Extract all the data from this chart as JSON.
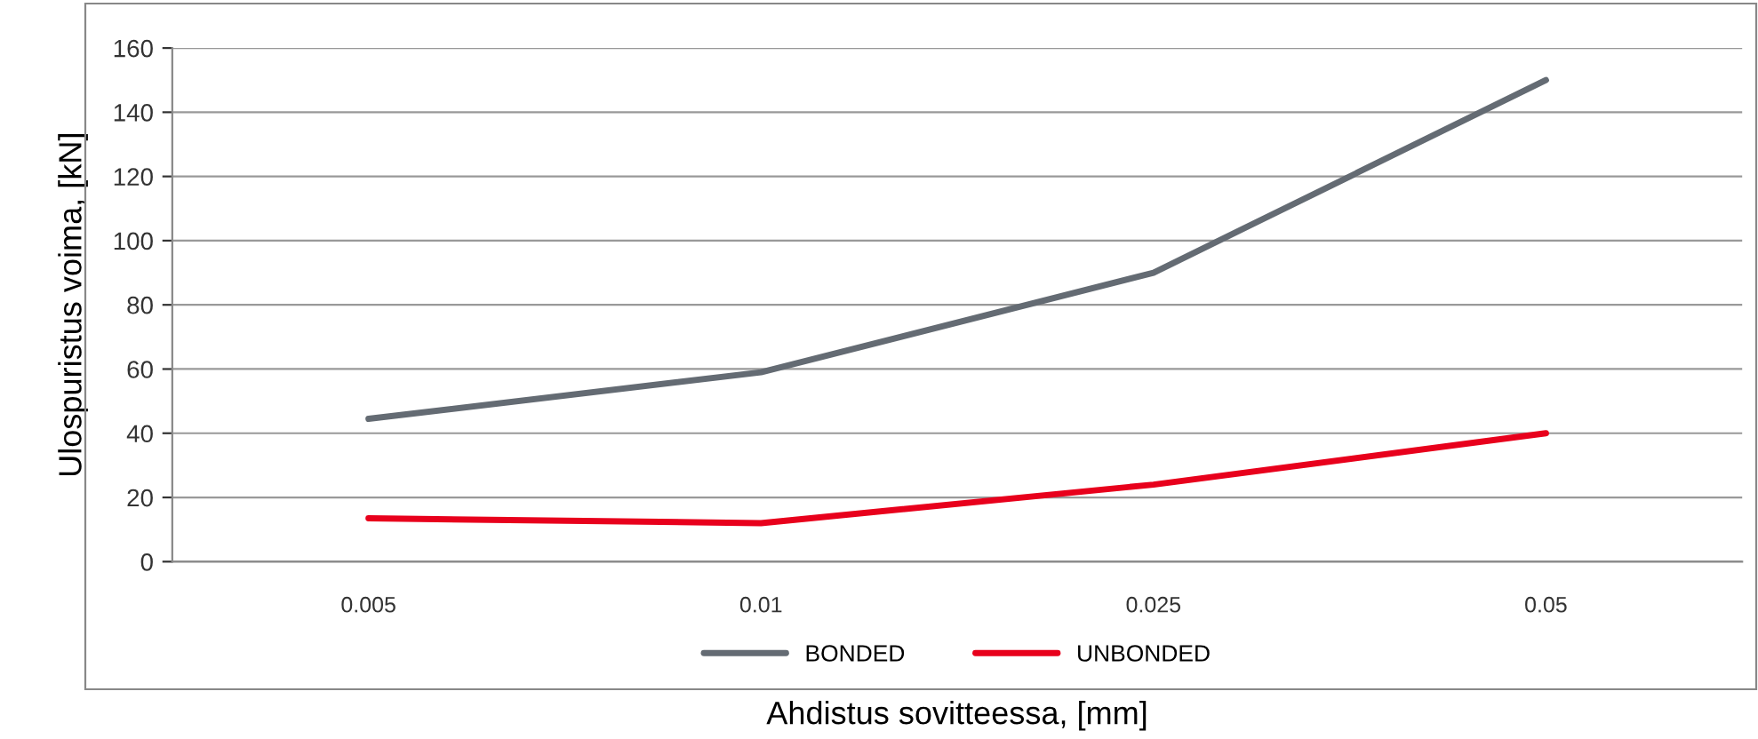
{
  "chart_data": {
    "type": "line",
    "xlabel": "Ahdistus sovitteessa, [mm]",
    "ylabel": "Ulospuristus voima, [kN]",
    "categories": [
      "0.005",
      "0.01",
      "0.025",
      "0.05"
    ],
    "series": [
      {
        "name": "BONDED",
        "color": "#646b73",
        "values": [
          44.5,
          59,
          90,
          150
        ]
      },
      {
        "name": "UNBONDED",
        "color": "#e8001c",
        "values": [
          13.5,
          12,
          24,
          40
        ]
      }
    ],
    "ylim": [
      0,
      160
    ],
    "yticks": [
      0,
      20,
      40,
      60,
      80,
      100,
      120,
      140,
      160
    ],
    "grid": "y",
    "legend": "bottom",
    "marker": "none",
    "line_style": "solid"
  }
}
